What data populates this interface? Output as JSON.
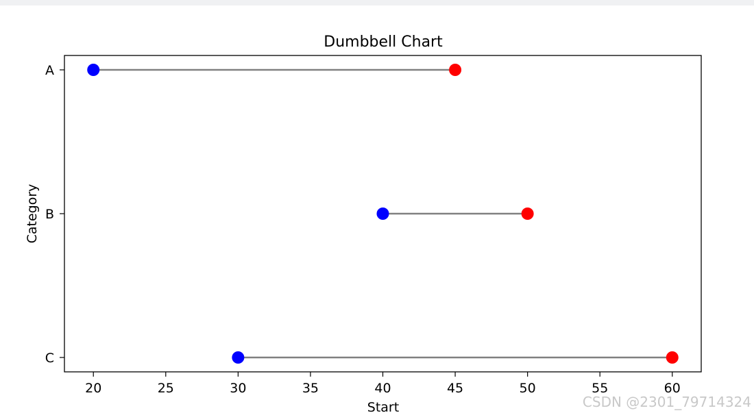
{
  "chart_data": {
    "type": "dumbbell",
    "title": "Dumbbell Chart",
    "xlabel": "Start",
    "ylabel": "Category",
    "categories": [
      "A",
      "B",
      "C"
    ],
    "series": [
      {
        "name": "",
        "values": [
          20,
          40,
          30
        ],
        "color": "#0000ff"
      },
      {
        "name": "",
        "values": [
          45,
          50,
          60
        ],
        "color": "#ff0000"
      }
    ],
    "connector_color": "#808080",
    "xlim": [
      18,
      62
    ],
    "xticks": [
      20,
      25,
      30,
      35,
      40,
      45,
      50,
      55,
      60
    ],
    "grid": false,
    "legend": "none"
  },
  "watermark": "CSDN @2301_79714324"
}
